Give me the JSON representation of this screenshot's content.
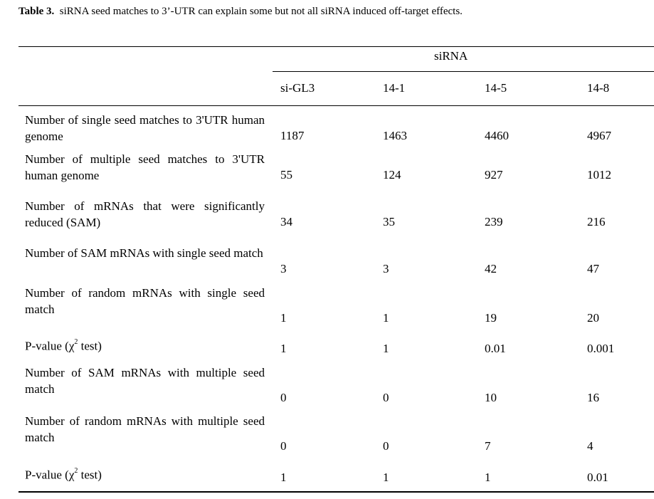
{
  "caption": {
    "label": "Table 3.",
    "text": "siRNA seed matches to 3’-UTR can explain some but not all siRNA induced off-target effects."
  },
  "table": {
    "group_header": "siRNA",
    "columns": [
      "si-GL3",
      "14-1",
      "14-5",
      "14-8"
    ],
    "rows": [
      {
        "label": "Number of single seed matches to 3'UTR human genome",
        "values": [
          "1187",
          "1463",
          "4460",
          "4967"
        ]
      },
      {
        "label": "Number of multiple seed matches to 3'UTR human genome",
        "values": [
          "55",
          "124",
          "927",
          "1012"
        ]
      },
      {
        "label": "Number of mRNAs that were significantly reduced (SAM)",
        "values": [
          "34",
          "35",
          "239",
          "216"
        ]
      },
      {
        "label": "Number of SAM mRNAs with single seed match",
        "values": [
          "3",
          "3",
          "42",
          "47"
        ]
      },
      {
        "label": "Number of random mRNAs with single seed match",
        "values": [
          "1",
          "1",
          "19",
          "20"
        ]
      },
      {
        "label_prefix": "P-value (χ",
        "label_sup": "2",
        "label_suffix": " test)",
        "values": [
          "1",
          "1",
          "0.01",
          "0.001"
        ]
      },
      {
        "label": "Number of SAM mRNAs with multiple seed match",
        "values": [
          "0",
          "0",
          "10",
          "16"
        ]
      },
      {
        "label": "Number of random mRNAs with multiple seed match",
        "values": [
          "0",
          "0",
          "7",
          "4"
        ]
      },
      {
        "label_prefix": "P-value (χ",
        "label_sup": "2",
        "label_suffix": " test)",
        "values": [
          "1",
          "1",
          "1",
          "0.01"
        ]
      }
    ]
  }
}
